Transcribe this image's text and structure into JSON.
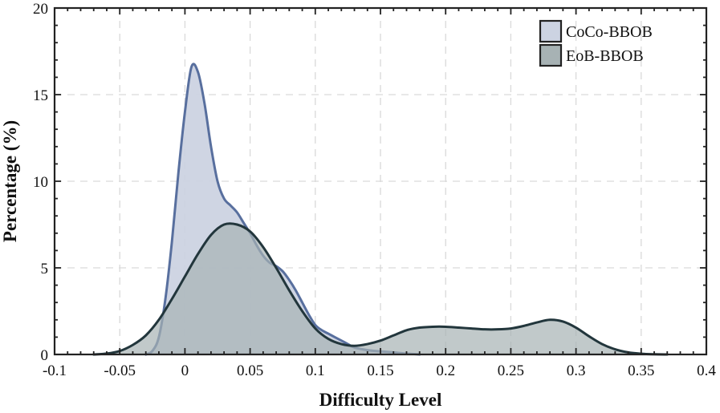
{
  "chart_data": {
    "type": "area",
    "title": "",
    "xlabel": "Difficulty Level",
    "ylabel": "Percentage (%)",
    "xlim": [
      -0.1,
      0.4
    ],
    "ylim": [
      0,
      20
    ],
    "xticks": [
      -0.1,
      -0.05,
      0,
      0.05,
      0.1,
      0.15,
      0.2,
      0.25,
      0.3,
      0.35,
      0.4
    ],
    "xtick_labels": [
      "-0.1",
      "-0.05",
      "0",
      "0.05",
      "0.1",
      "0.15",
      "0.2",
      "0.25",
      "0.3",
      "0.35",
      "0.4"
    ],
    "yticks": [
      0,
      5,
      10,
      15,
      20
    ],
    "ytick_labels": [
      "0",
      "5",
      "10",
      "15",
      "20"
    ],
    "grid": true,
    "legend_position": "top-right",
    "series": [
      {
        "name": "CoCo-BBOB",
        "fill": "#ccd3e2",
        "stroke": "#586f9e",
        "points": [
          [
            -0.03,
            0.0
          ],
          [
            -0.025,
            0.2
          ],
          [
            -0.02,
            1.0
          ],
          [
            -0.015,
            3.2
          ],
          [
            -0.01,
            6.5
          ],
          [
            -0.005,
            10.5
          ],
          [
            0.0,
            14.0
          ],
          [
            0.005,
            16.6
          ],
          [
            0.01,
            16.3
          ],
          [
            0.015,
            14.5
          ],
          [
            0.02,
            12.0
          ],
          [
            0.025,
            10.0
          ],
          [
            0.03,
            9.0
          ],
          [
            0.035,
            8.6
          ],
          [
            0.04,
            8.2
          ],
          [
            0.045,
            7.6
          ],
          [
            0.05,
            7.0
          ],
          [
            0.055,
            6.3
          ],
          [
            0.06,
            5.7
          ],
          [
            0.065,
            5.3
          ],
          [
            0.07,
            5.1
          ],
          [
            0.075,
            4.8
          ],
          [
            0.08,
            4.3
          ],
          [
            0.085,
            3.7
          ],
          [
            0.09,
            3.0
          ],
          [
            0.095,
            2.3
          ],
          [
            0.1,
            1.7
          ],
          [
            0.105,
            1.4
          ],
          [
            0.11,
            1.2
          ],
          [
            0.115,
            1.0
          ],
          [
            0.12,
            0.8
          ],
          [
            0.125,
            0.6
          ],
          [
            0.13,
            0.4
          ],
          [
            0.14,
            0.25
          ],
          [
            0.15,
            0.18
          ],
          [
            0.16,
            0.12
          ],
          [
            0.17,
            0.05
          ],
          [
            0.18,
            0.0
          ]
        ]
      },
      {
        "name": "EoB-BBOB",
        "fill": "#a7b2b4",
        "stroke": "#22363c",
        "points": [
          [
            -0.07,
            0.0
          ],
          [
            -0.06,
            0.05
          ],
          [
            -0.05,
            0.2
          ],
          [
            -0.04,
            0.55
          ],
          [
            -0.03,
            1.1
          ],
          [
            -0.02,
            2.0
          ],
          [
            -0.01,
            3.2
          ],
          [
            0.0,
            4.5
          ],
          [
            0.01,
            5.8
          ],
          [
            0.02,
            6.9
          ],
          [
            0.03,
            7.5
          ],
          [
            0.04,
            7.5
          ],
          [
            0.05,
            7.1
          ],
          [
            0.06,
            6.2
          ],
          [
            0.07,
            5.0
          ],
          [
            0.08,
            3.7
          ],
          [
            0.09,
            2.5
          ],
          [
            0.1,
            1.5
          ],
          [
            0.11,
            0.9
          ],
          [
            0.12,
            0.6
          ],
          [
            0.13,
            0.5
          ],
          [
            0.14,
            0.6
          ],
          [
            0.15,
            0.8
          ],
          [
            0.16,
            1.1
          ],
          [
            0.17,
            1.4
          ],
          [
            0.18,
            1.55
          ],
          [
            0.19,
            1.6
          ],
          [
            0.2,
            1.6
          ],
          [
            0.21,
            1.55
          ],
          [
            0.22,
            1.5
          ],
          [
            0.23,
            1.45
          ],
          [
            0.24,
            1.45
          ],
          [
            0.25,
            1.5
          ],
          [
            0.26,
            1.65
          ],
          [
            0.27,
            1.85
          ],
          [
            0.28,
            2.0
          ],
          [
            0.29,
            1.9
          ],
          [
            0.3,
            1.55
          ],
          [
            0.31,
            1.05
          ],
          [
            0.32,
            0.6
          ],
          [
            0.33,
            0.3
          ],
          [
            0.34,
            0.12
          ],
          [
            0.35,
            0.04
          ],
          [
            0.36,
            0.01
          ],
          [
            0.37,
            0.0
          ]
        ]
      }
    ]
  }
}
